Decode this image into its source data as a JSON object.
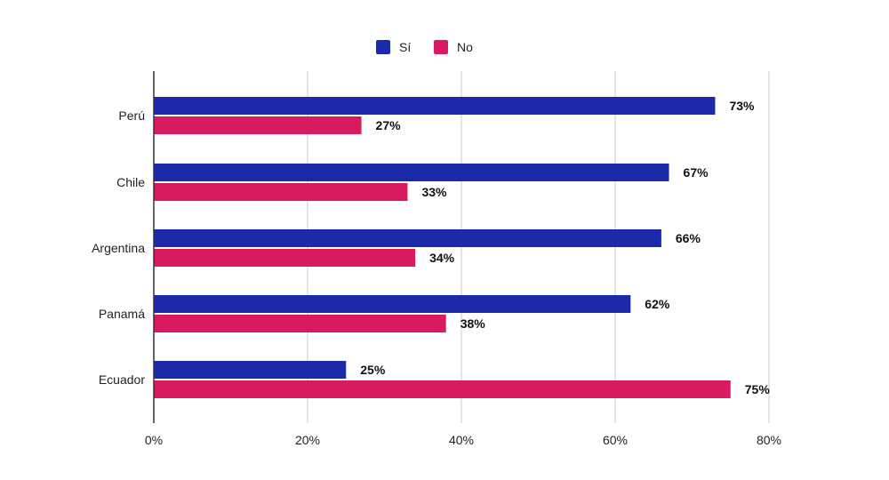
{
  "chart_data": {
    "type": "bar",
    "orientation": "horizontal",
    "title": "",
    "xlabel": "",
    "ylabel": "",
    "categories": [
      "Perú",
      "Chile",
      "Argentina",
      "Panamá",
      "Ecuador"
    ],
    "series": [
      {
        "name": "Sí",
        "color": "#1a2aa8",
        "values": [
          73,
          67,
          66,
          62,
          25
        ],
        "labels": [
          "73%",
          "67%",
          "66%",
          "62%",
          "25%"
        ]
      },
      {
        "name": "No",
        "color": "#d81b60",
        "values": [
          27,
          33,
          34,
          38,
          75
        ],
        "labels": [
          "27%",
          "33%",
          "34%",
          "38%",
          "75%"
        ]
      }
    ],
    "xlim": [
      0,
      80
    ],
    "ticks": [
      0,
      20,
      40,
      60,
      80
    ],
    "tick_labels": [
      "0%",
      "20%",
      "40%",
      "60%",
      "80%"
    ],
    "grid": true,
    "legend_position": "top-center",
    "grid_color": "#cccccc",
    "axis_color": "#333333"
  }
}
